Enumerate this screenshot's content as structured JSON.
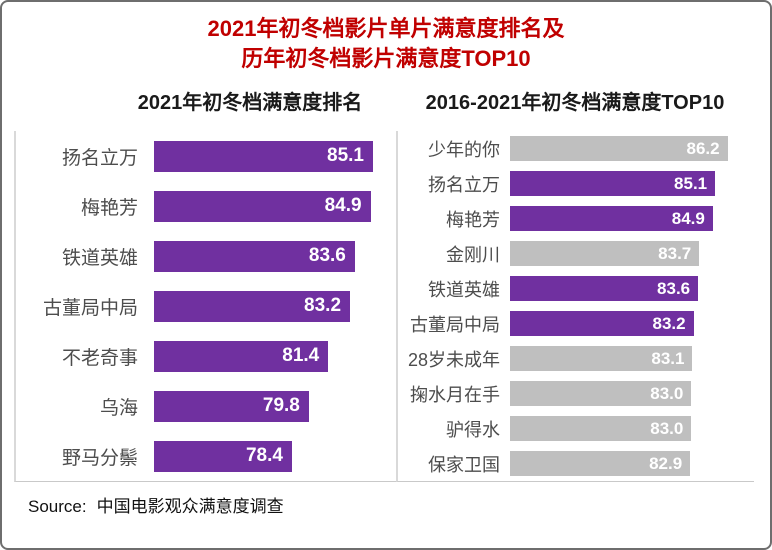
{
  "page": {
    "title_line1": "2021年初冬档影片单片满意度排名及",
    "title_line2": "历年初冬档影片满意度TOP10",
    "title_color": "#c00000",
    "source_prefix": "Source:",
    "source_text": "中国电影观众满意度调查"
  },
  "colors": {
    "purple": "#7030a0",
    "gray": "#bfbfbf",
    "value_text": "#ffffff",
    "label_text": "#4d4d4d",
    "axis": "#d9d9d9"
  },
  "chart_data": [
    {
      "type": "bar",
      "orientation": "horizontal",
      "title": "2021年初冬档满意度排名",
      "categories": [
        "扬名立万",
        "梅艳芳",
        "铁道英雄",
        "古董局中局",
        "不老奇事",
        "乌海",
        "野马分鬃"
      ],
      "values": [
        85.1,
        84.9,
        83.6,
        83.2,
        81.4,
        79.8,
        78.4
      ],
      "bar_colors": [
        "#7030a0",
        "#7030a0",
        "#7030a0",
        "#7030a0",
        "#7030a0",
        "#7030a0",
        "#7030a0"
      ],
      "xlim": [
        67,
        87
      ],
      "value_label_position": "inside-end",
      "grid": false,
      "legend": false
    },
    {
      "type": "bar",
      "orientation": "horizontal",
      "title": "2016-2021年初冬档满意度TOP10",
      "categories": [
        "少年的你",
        "扬名立万",
        "梅艳芳",
        "金刚川",
        "铁道英雄",
        "古董局中局",
        "28岁未成年",
        "掬水月在手",
        "驴得水",
        "保家卫国"
      ],
      "values": [
        86.2,
        85.1,
        84.9,
        83.7,
        83.6,
        83.2,
        83.1,
        83.0,
        83.0,
        82.9
      ],
      "bar_colors": [
        "#bfbfbf",
        "#7030a0",
        "#7030a0",
        "#bfbfbf",
        "#7030a0",
        "#7030a0",
        "#bfbfbf",
        "#bfbfbf",
        "#bfbfbf",
        "#bfbfbf"
      ],
      "xlim": [
        67,
        88
      ],
      "value_label_position": "inside-end",
      "grid": false,
      "legend": false
    }
  ]
}
